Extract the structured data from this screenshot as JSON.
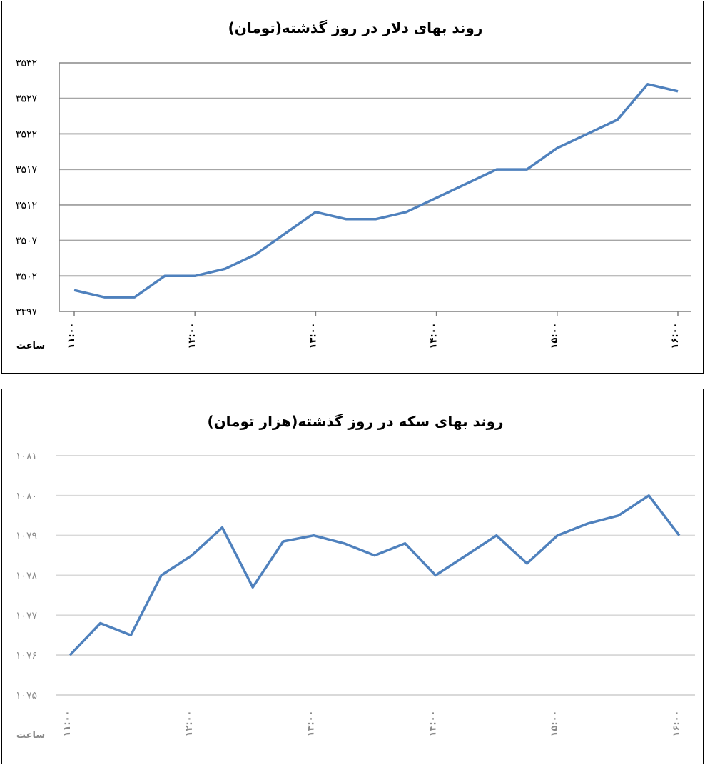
{
  "chart_data": [
    {
      "type": "line",
      "title": "روند بهای دلار در روز گذشته(تومان)",
      "xlabel": "ساعت",
      "ylabel": "",
      "ylim": [
        3497,
        3532
      ],
      "yticks": [
        "۳۴۹۷",
        "۳۵۰۲",
        "۳۵۰۷",
        "۳۵۱۲",
        "۳۵۱۷",
        "۳۵۲۲",
        "۳۵۲۷",
        "۳۵۳۲"
      ],
      "xticks": [
        "۱۱:۰۰",
        "۱۲:۰۰",
        "۱۳:۰۰",
        "۱۴:۰۰",
        "۱۵:۰۰",
        "۱۶:۰۰"
      ],
      "grid": true,
      "line_color": "#4f81bd",
      "values": [
        3500,
        3499,
        3499,
        3502,
        3502,
        3503,
        3505,
        3508,
        3511,
        3510,
        3510,
        3511,
        3513,
        3515,
        3517,
        3517,
        3520,
        3522,
        3524,
        3529,
        3528
      ]
    },
    {
      "type": "line",
      "title": "روند بهای سکه در روز گذشته(هزار تومان)",
      "xlabel": "ساعت",
      "ylabel": "",
      "ylim": [
        1075,
        1081
      ],
      "yticks": [
        "۱۰۷۵",
        "۱۰۷۶",
        "۱۰۷۷",
        "۱۰۷۸",
        "۱۰۷۹",
        "۱۰۸۰",
        "۱۰۸۱"
      ],
      "xticks": [
        "۱۱:۰۰",
        "۱۲:۰۰",
        "۱۳:۰۰",
        "۱۴:۰۰",
        "۱۵:۰۰",
        "۱۶:۰۰"
      ],
      "grid": true,
      "line_color": "#4f81bd",
      "values": [
        1076,
        1076.8,
        1076.5,
        1078,
        1078.5,
        1079.2,
        1077.7,
        1078.85,
        1079,
        1078.8,
        1078.5,
        1078.8,
        1078,
        1078.5,
        1079,
        1078.3,
        1079,
        1079.3,
        1079.5,
        1080,
        1079
      ]
    }
  ]
}
